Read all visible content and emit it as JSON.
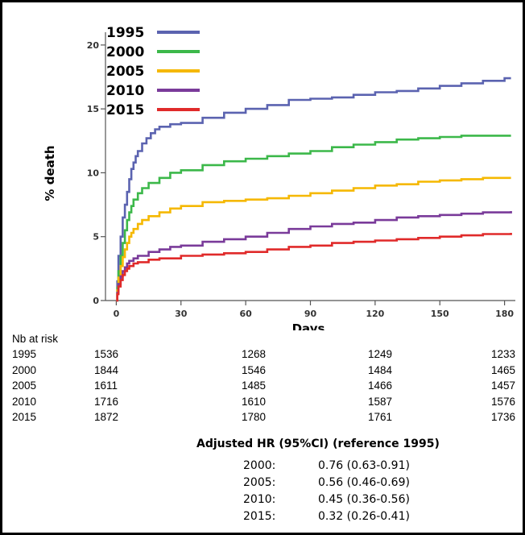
{
  "chart_data": {
    "type": "line",
    "title": "",
    "xlabel": "Days",
    "ylabel": "% death",
    "xlim": [
      -5,
      185
    ],
    "ylim": [
      0,
      21
    ],
    "x_ticks": [
      0,
      30,
      60,
      90,
      120,
      150,
      180
    ],
    "y_ticks": [
      0,
      5,
      10,
      15,
      20
    ],
    "grid": false,
    "legend_position": "top-left",
    "series": [
      {
        "name": "1995",
        "color": "#5b63b0",
        "points": [
          [
            0,
            0
          ],
          [
            0.5,
            1.5
          ],
          [
            1,
            3.5
          ],
          [
            2,
            5
          ],
          [
            3,
            6.5
          ],
          [
            4,
            7.5
          ],
          [
            5,
            8.5
          ],
          [
            6,
            9.5
          ],
          [
            7,
            10.3
          ],
          [
            8,
            10.8
          ],
          [
            9,
            11.3
          ],
          [
            10,
            11.7
          ],
          [
            12,
            12.3
          ],
          [
            14,
            12.7
          ],
          [
            16,
            13.1
          ],
          [
            18,
            13.4
          ],
          [
            20,
            13.6
          ],
          [
            25,
            13.8
          ],
          [
            30,
            13.9
          ],
          [
            40,
            14.3
          ],
          [
            50,
            14.7
          ],
          [
            60,
            15
          ],
          [
            70,
            15.3
          ],
          [
            80,
            15.7
          ],
          [
            90,
            15.8
          ],
          [
            100,
            15.9
          ],
          [
            110,
            16.1
          ],
          [
            120,
            16.3
          ],
          [
            130,
            16.4
          ],
          [
            140,
            16.6
          ],
          [
            150,
            16.8
          ],
          [
            160,
            17
          ],
          [
            170,
            17.2
          ],
          [
            180,
            17.4
          ],
          [
            183,
            17.4
          ]
        ]
      },
      {
        "name": "2000",
        "color": "#3cb84a",
        "points": [
          [
            0,
            0
          ],
          [
            0.5,
            1
          ],
          [
            1,
            2.3
          ],
          [
            2,
            3.5
          ],
          [
            3,
            4.5
          ],
          [
            4,
            5.5
          ],
          [
            5,
            6.3
          ],
          [
            6,
            6.9
          ],
          [
            7,
            7.4
          ],
          [
            8,
            7.9
          ],
          [
            10,
            8.4
          ],
          [
            12,
            8.8
          ],
          [
            15,
            9.2
          ],
          [
            20,
            9.6
          ],
          [
            25,
            10
          ],
          [
            30,
            10.2
          ],
          [
            40,
            10.6
          ],
          [
            50,
            10.9
          ],
          [
            60,
            11.1
          ],
          [
            70,
            11.3
          ],
          [
            80,
            11.5
          ],
          [
            90,
            11.7
          ],
          [
            100,
            12
          ],
          [
            110,
            12.2
          ],
          [
            120,
            12.4
          ],
          [
            130,
            12.6
          ],
          [
            140,
            12.7
          ],
          [
            150,
            12.8
          ],
          [
            160,
            12.9
          ],
          [
            170,
            12.9
          ],
          [
            183,
            12.9
          ]
        ]
      },
      {
        "name": "2005",
        "color": "#f5b800",
        "points": [
          [
            0,
            0
          ],
          [
            0.5,
            0.8
          ],
          [
            1,
            1.8
          ],
          [
            2,
            2.7
          ],
          [
            3,
            3.4
          ],
          [
            4,
            4
          ],
          [
            5,
            4.5
          ],
          [
            6,
            5
          ],
          [
            7,
            5.3
          ],
          [
            8,
            5.6
          ],
          [
            10,
            6
          ],
          [
            12,
            6.3
          ],
          [
            15,
            6.6
          ],
          [
            20,
            6.9
          ],
          [
            25,
            7.2
          ],
          [
            30,
            7.4
          ],
          [
            40,
            7.7
          ],
          [
            50,
            7.8
          ],
          [
            60,
            7.9
          ],
          [
            70,
            8
          ],
          [
            80,
            8.2
          ],
          [
            90,
            8.4
          ],
          [
            100,
            8.6
          ],
          [
            110,
            8.8
          ],
          [
            120,
            9
          ],
          [
            130,
            9.1
          ],
          [
            140,
            9.3
          ],
          [
            150,
            9.4
          ],
          [
            160,
            9.5
          ],
          [
            170,
            9.6
          ],
          [
            183,
            9.6
          ]
        ]
      },
      {
        "name": "2010",
        "color": "#7a3b9a",
        "points": [
          [
            0,
            0
          ],
          [
            0.5,
            0.6
          ],
          [
            1,
            1.3
          ],
          [
            2,
            1.9
          ],
          [
            3,
            2.3
          ],
          [
            4,
            2.6
          ],
          [
            5,
            2.9
          ],
          [
            6,
            3.1
          ],
          [
            8,
            3.3
          ],
          [
            10,
            3.5
          ],
          [
            15,
            3.8
          ],
          [
            20,
            4
          ],
          [
            25,
            4.2
          ],
          [
            30,
            4.3
          ],
          [
            40,
            4.6
          ],
          [
            50,
            4.8
          ],
          [
            60,
            5
          ],
          [
            70,
            5.3
          ],
          [
            80,
            5.6
          ],
          [
            90,
            5.8
          ],
          [
            100,
            6
          ],
          [
            110,
            6.1
          ],
          [
            120,
            6.3
          ],
          [
            130,
            6.5
          ],
          [
            140,
            6.6
          ],
          [
            150,
            6.7
          ],
          [
            160,
            6.8
          ],
          [
            170,
            6.9
          ],
          [
            183,
            7
          ]
        ]
      },
      {
        "name": "2015",
        "color": "#e02a2a",
        "points": [
          [
            0,
            0
          ],
          [
            0.5,
            0.5
          ],
          [
            1,
            1.1
          ],
          [
            2,
            1.6
          ],
          [
            3,
            2
          ],
          [
            4,
            2.3
          ],
          [
            5,
            2.5
          ],
          [
            6,
            2.7
          ],
          [
            8,
            2.9
          ],
          [
            10,
            3
          ],
          [
            15,
            3.2
          ],
          [
            20,
            3.3
          ],
          [
            30,
            3.5
          ],
          [
            40,
            3.6
          ],
          [
            50,
            3.7
          ],
          [
            60,
            3.8
          ],
          [
            70,
            4
          ],
          [
            80,
            4.2
          ],
          [
            90,
            4.3
          ],
          [
            100,
            4.5
          ],
          [
            110,
            4.6
          ],
          [
            120,
            4.7
          ],
          [
            130,
            4.8
          ],
          [
            140,
            4.9
          ],
          [
            150,
            5
          ],
          [
            160,
            5.1
          ],
          [
            170,
            5.2
          ],
          [
            183,
            5.3
          ]
        ]
      }
    ]
  },
  "risk_table": {
    "title": "Nb at risk",
    "rows": [
      {
        "year": "1995",
        "values": [
          "1536",
          "1268",
          "1249",
          "1233"
        ]
      },
      {
        "year": "2000",
        "values": [
          "1844",
          "1546",
          "1484",
          "1465"
        ]
      },
      {
        "year": "2005",
        "values": [
          "1611",
          "1485",
          "1466",
          "1457"
        ]
      },
      {
        "year": "2010",
        "values": [
          "1716",
          "1610",
          "1587",
          "1576"
        ]
      },
      {
        "year": "2015",
        "values": [
          "1872",
          "1780",
          "1761",
          "1736"
        ]
      }
    ]
  },
  "hazard_ratios": {
    "header": "Adjusted  HR   (95%CI) (reference 1995)",
    "rows": [
      {
        "label": "2000:",
        "value": "0.76 (0.63-0.91)"
      },
      {
        "label": "2005:",
        "value": "0.56 (0.46-0.69)"
      },
      {
        "label": "2010:",
        "value": "0.45 (0.36-0.56)"
      },
      {
        "label": "2015:",
        "value": "0.32 (0.26-0.41)"
      }
    ]
  }
}
